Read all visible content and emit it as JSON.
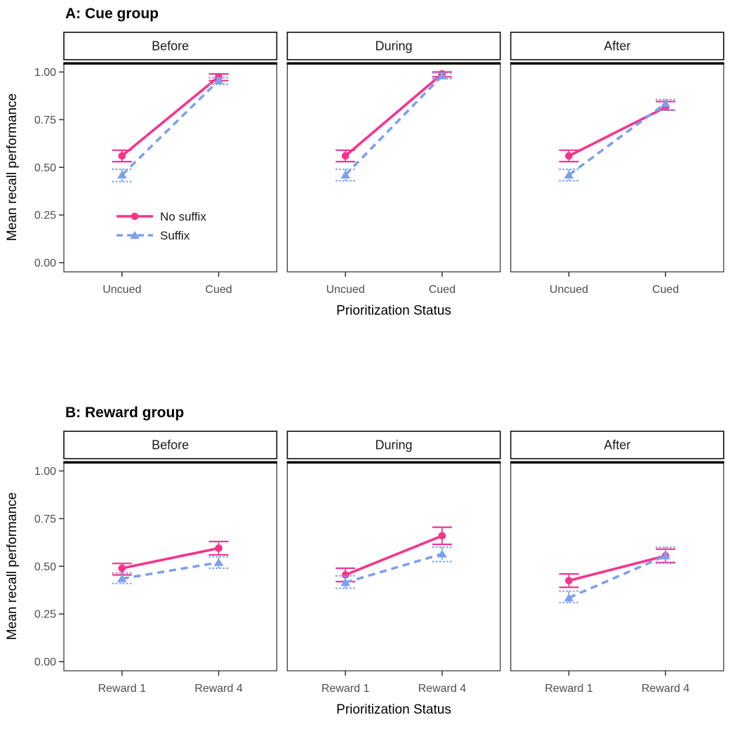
{
  "figure": {
    "colors": {
      "no_suffix": "#F5348C",
      "suffix": "#7DA0EE",
      "tick_label": "#4D4D4D",
      "text": "#000000",
      "strip_border": "#1A1A1A",
      "panel_border": "#3C3C3C",
      "panel_top_line": "#000000",
      "background": "#FFFFFF"
    }
  },
  "chart_data": [
    {
      "type": "line",
      "title": "A: Cue group",
      "facets": [
        "Before",
        "During",
        "After"
      ],
      "categories": [
        "Uncued",
        "Cued"
      ],
      "xlabel": "Prioritization Status",
      "ylabel": "Mean recall performance",
      "ytick_labels": [
        "0.00",
        "0.25",
        "0.50",
        "0.75",
        "1.00"
      ],
      "ylim": [
        -0.05,
        1.06
      ],
      "grid": false,
      "show_legend": true,
      "legend_position": "inside-first-facet",
      "series": [
        {
          "name": "No suffix",
          "color_key": "no_suffix",
          "marker": "circle",
          "line_style": "solid",
          "values": {
            "Before": {
              "mean": [
                0.56,
                0.975
              ],
              "ci": [
                [
                  0.53,
                  0.59
                ],
                [
                  0.955,
                  0.99
                ]
              ]
            },
            "During": {
              "mean": [
                0.56,
                0.99
              ],
              "ci": [
                [
                  0.53,
                  0.59
                ],
                [
                  0.975,
                  1.0
                ]
              ]
            },
            "After": {
              "mean": [
                0.56,
                0.815
              ],
              "ci": [
                [
                  0.53,
                  0.59
                ],
                [
                  0.8,
                  0.845
                ]
              ]
            }
          }
        },
        {
          "name": "Suffix",
          "color_key": "suffix",
          "marker": "triangle",
          "line_style": "dashed",
          "values": {
            "Before": {
              "mean": [
                0.46,
                0.955
              ],
              "ci": [
                [
                  0.425,
                  0.49
                ],
                [
                  0.935,
                  0.97
                ]
              ]
            },
            "During": {
              "mean": [
                0.46,
                0.98
              ],
              "ci": [
                [
                  0.43,
                  0.49
                ],
                [
                  0.965,
                  0.995
                ]
              ]
            },
            "After": {
              "mean": [
                0.46,
                0.835
              ],
              "ci": [
                [
                  0.43,
                  0.49
                ],
                [
                  0.8,
                  0.855
                ]
              ]
            }
          }
        }
      ]
    },
    {
      "type": "line",
      "title": "B: Reward group",
      "facets": [
        "Before",
        "During",
        "After"
      ],
      "categories": [
        "Reward 1",
        "Reward 4"
      ],
      "xlabel": "Prioritization Status",
      "ylabel": "Mean recall performance",
      "ytick_labels": [
        "0.00",
        "0.25",
        "0.50",
        "0.75",
        "1.00"
      ],
      "ylim": [
        -0.05,
        1.06
      ],
      "grid": false,
      "show_legend": false,
      "legend_position": "none",
      "series": [
        {
          "name": "No suffix",
          "color_key": "no_suffix",
          "marker": "circle",
          "line_style": "solid",
          "values": {
            "Before": {
              "mean": [
                0.49,
                0.595
              ],
              "ci": [
                [
                  0.455,
                  0.515
                ],
                [
                  0.56,
                  0.63
                ]
              ]
            },
            "During": {
              "mean": [
                0.455,
                0.66
              ],
              "ci": [
                [
                  0.42,
                  0.49
                ],
                [
                  0.615,
                  0.705
                ]
              ]
            },
            "After": {
              "mean": [
                0.425,
                0.555
              ],
              "ci": [
                [
                  0.39,
                  0.46
                ],
                [
                  0.52,
                  0.59
                ]
              ]
            }
          }
        },
        {
          "name": "Suffix",
          "color_key": "suffix",
          "marker": "triangle",
          "line_style": "dashed",
          "values": {
            "Before": {
              "mean": [
                0.435,
                0.52
              ],
              "ci": [
                [
                  0.41,
                  0.465
                ],
                [
                  0.49,
                  0.55
                ]
              ]
            },
            "During": {
              "mean": [
                0.415,
                0.565
              ],
              "ci": [
                [
                  0.385,
                  0.45
                ],
                [
                  0.525,
                  0.6
                ]
              ]
            },
            "After": {
              "mean": [
                0.335,
                0.555
              ],
              "ci": [
                [
                  0.31,
                  0.37
                ],
                [
                  0.515,
                  0.6
                ]
              ]
            }
          }
        }
      ]
    }
  ]
}
